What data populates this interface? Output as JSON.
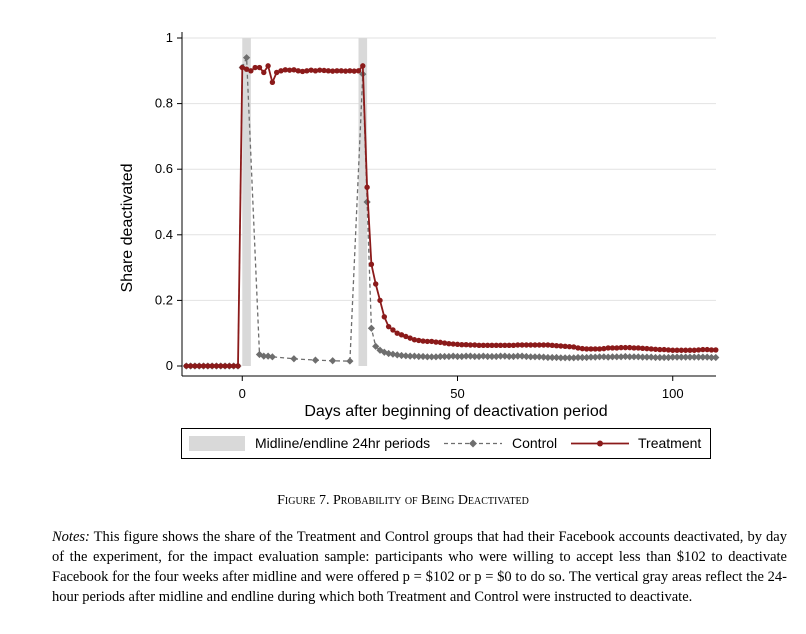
{
  "chart_data": {
    "type": "line",
    "ylabel": "Share deactivated",
    "xlabel": "Days after beginning of deactivation period",
    "xlim": [
      -14,
      114
    ],
    "ylim": [
      0,
      1
    ],
    "x_ticks": [
      0,
      50,
      100
    ],
    "y_ticks": [
      0,
      0.2,
      0.4,
      0.6,
      0.8,
      1
    ],
    "y_tick_labels": [
      "0",
      "0.2",
      "0.4",
      "0.6",
      "0.8",
      "1"
    ],
    "grid": true,
    "legend_position": "bottom",
    "shaded_periods": [
      [
        0,
        2
      ],
      [
        27,
        29
      ]
    ],
    "series": [
      {
        "name": "Control",
        "color": "#6e6e6e",
        "line": "dashed",
        "marker": "diamond",
        "x": [
          -13,
          -12,
          -11,
          -10,
          -9,
          -8,
          -7,
          -6,
          -5,
          -4,
          -3,
          -2,
          -1,
          0,
          1,
          4,
          5,
          6,
          7,
          12,
          17,
          21,
          25,
          28,
          29,
          30,
          31,
          32,
          33,
          34,
          35,
          36,
          37,
          38,
          39,
          40,
          41,
          42,
          43,
          44,
          45,
          46,
          47,
          48,
          49,
          50,
          51,
          52,
          53,
          54,
          55,
          56,
          57,
          58,
          59,
          60,
          61,
          62,
          63,
          64,
          65,
          66,
          67,
          68,
          69,
          70,
          71,
          72,
          73,
          74,
          75,
          76,
          77,
          78,
          79,
          80,
          81,
          82,
          83,
          84,
          85,
          86,
          87,
          88,
          89,
          90,
          91,
          92,
          93,
          94,
          95,
          96,
          97,
          98,
          99,
          100,
          101,
          102,
          103,
          104,
          105,
          106,
          107,
          108,
          109,
          110
        ],
        "y": [
          0,
          0,
          0,
          0,
          0,
          0,
          0,
          0,
          0,
          0,
          0,
          0,
          0,
          0.91,
          0.94,
          0.035,
          0.03,
          0.03,
          0.028,
          0.022,
          0.018,
          0.016,
          0.015,
          0.89,
          0.5,
          0.115,
          0.06,
          0.048,
          0.042,
          0.038,
          0.036,
          0.034,
          0.032,
          0.031,
          0.03,
          0.03,
          0.029,
          0.029,
          0.028,
          0.028,
          0.028,
          0.029,
          0.029,
          0.029,
          0.03,
          0.029,
          0.029,
          0.03,
          0.03,
          0.029,
          0.029,
          0.03,
          0.029,
          0.029,
          0.029,
          0.03,
          0.03,
          0.029,
          0.029,
          0.03,
          0.03,
          0.029,
          0.028,
          0.028,
          0.028,
          0.027,
          0.026,
          0.026,
          0.026,
          0.025,
          0.025,
          0.025,
          0.025,
          0.026,
          0.026,
          0.026,
          0.027,
          0.027,
          0.028,
          0.028,
          0.027,
          0.028,
          0.028,
          0.028,
          0.029,
          0.028,
          0.028,
          0.028,
          0.027,
          0.027,
          0.027,
          0.026,
          0.026,
          0.026,
          0.026,
          0.027,
          0.027,
          0.027,
          0.027,
          0.027,
          0.027,
          0.027,
          0.027,
          0.027,
          0.026,
          0.026
        ]
      },
      {
        "name": "Treatment",
        "color": "#8b1a1a",
        "line": "solid",
        "marker": "circle",
        "x": [
          -13,
          -12,
          -11,
          -10,
          -9,
          -8,
          -7,
          -6,
          -5,
          -4,
          -3,
          -2,
          -1,
          0,
          1,
          2,
          3,
          4,
          5,
          6,
          7,
          8,
          9,
          10,
          11,
          12,
          13,
          14,
          15,
          16,
          17,
          18,
          19,
          20,
          21,
          22,
          23,
          24,
          25,
          26,
          27,
          28,
          29,
          30,
          31,
          32,
          33,
          34,
          35,
          36,
          37,
          38,
          39,
          40,
          41,
          42,
          43,
          44,
          45,
          46,
          47,
          48,
          49,
          50,
          51,
          52,
          53,
          54,
          55,
          56,
          57,
          58,
          59,
          60,
          61,
          62,
          63,
          64,
          65,
          66,
          67,
          68,
          69,
          70,
          71,
          72,
          73,
          74,
          75,
          76,
          77,
          78,
          79,
          80,
          81,
          82,
          83,
          84,
          85,
          86,
          87,
          88,
          89,
          90,
          91,
          92,
          93,
          94,
          95,
          96,
          97,
          98,
          99,
          100,
          101,
          102,
          103,
          104,
          105,
          106,
          107,
          108,
          109,
          110
        ],
        "y": [
          0,
          0,
          0,
          0,
          0,
          0,
          0,
          0,
          0,
          0,
          0,
          0,
          0,
          0.91,
          0.905,
          0.9,
          0.91,
          0.91,
          0.895,
          0.915,
          0.865,
          0.895,
          0.9,
          0.903,
          0.902,
          0.903,
          0.9,
          0.898,
          0.9,
          0.902,
          0.9,
          0.902,
          0.901,
          0.9,
          0.899,
          0.9,
          0.9,
          0.899,
          0.9,
          0.899,
          0.9,
          0.915,
          0.545,
          0.31,
          0.25,
          0.2,
          0.15,
          0.12,
          0.11,
          0.1,
          0.095,
          0.09,
          0.085,
          0.08,
          0.078,
          0.076,
          0.075,
          0.075,
          0.073,
          0.072,
          0.07,
          0.068,
          0.067,
          0.066,
          0.065,
          0.065,
          0.064,
          0.064,
          0.063,
          0.063,
          0.063,
          0.063,
          0.063,
          0.063,
          0.063,
          0.063,
          0.063,
          0.064,
          0.064,
          0.064,
          0.064,
          0.064,
          0.064,
          0.064,
          0.064,
          0.063,
          0.062,
          0.061,
          0.06,
          0.059,
          0.058,
          0.055,
          0.053,
          0.052,
          0.052,
          0.052,
          0.052,
          0.053,
          0.055,
          0.055,
          0.055,
          0.056,
          0.056,
          0.056,
          0.055,
          0.055,
          0.054,
          0.053,
          0.052,
          0.051,
          0.05,
          0.05,
          0.049,
          0.048,
          0.048,
          0.048,
          0.048,
          0.048,
          0.048,
          0.049,
          0.05,
          0.05,
          0.049,
          0.049
        ]
      }
    ],
    "legend": {
      "shaded_label": "Midline/endline 24hr periods",
      "items": [
        "Midline/endline 24hr periods",
        "Control",
        "Treatment"
      ]
    }
  },
  "caption": {
    "prefix": "Figure 7. ",
    "title": "Probability of Being Deactivated"
  },
  "notes": {
    "label": "Notes:",
    "text": " This figure shows the share of the Treatment and Control groups that had their Facebook accounts deactivated, by day of the experiment, for the impact evaluation sample: participants who were willing to accept less than $102 to deactivate Facebook for the four weeks after midline and were offered p = $102 or p = $0 to do so. The vertical gray areas reflect the 24-hour periods after midline and endline during which both Treatment and Control were instructed to deactivate."
  },
  "colors": {
    "shaded": "#d9d9d9",
    "grid": "#e2e2e2",
    "control": "#6e6e6e",
    "treatment": "#8b1a1a"
  }
}
